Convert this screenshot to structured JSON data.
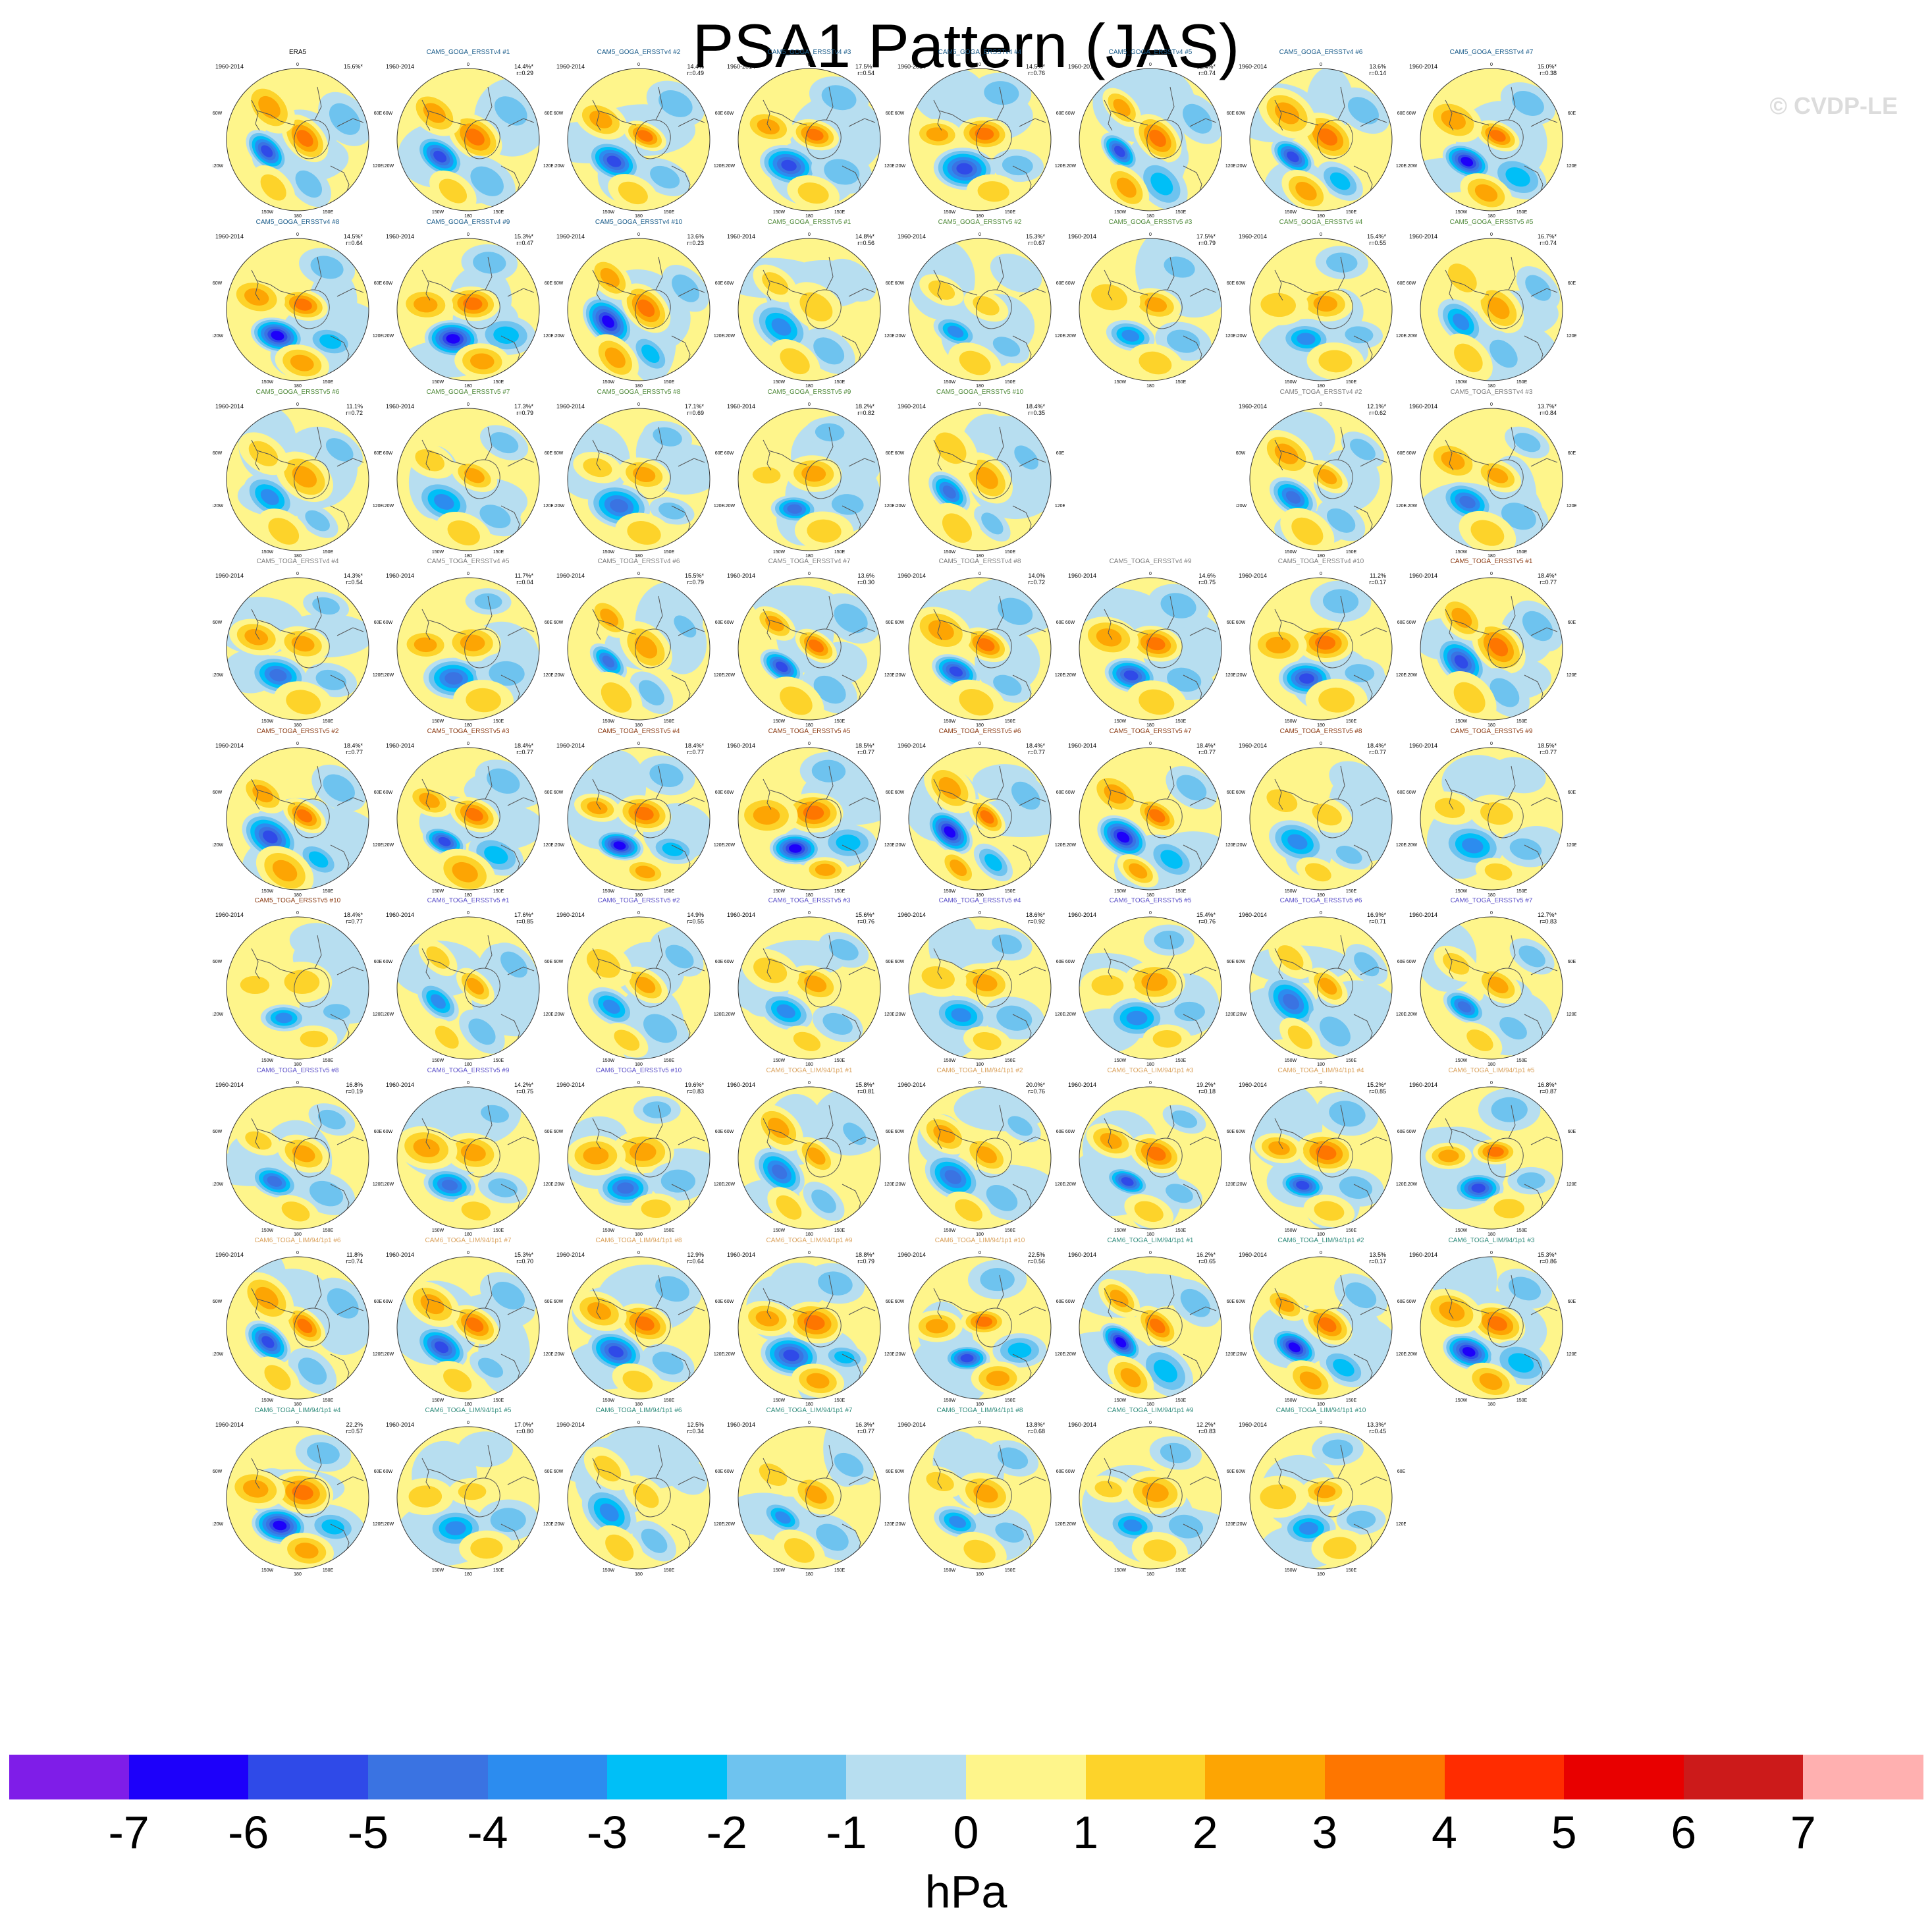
{
  "title": "PSA1 Pattern (JAS)",
  "copyright": "© CVDP-LE",
  "chart_data": {
    "type": "heatmap",
    "projection": "south-polar stereographic",
    "variable_units": "hPa",
    "colorbar": {
      "units": "hPa",
      "ticks": [
        "-7",
        "-6",
        "-5",
        "-4",
        "-3",
        "-2",
        "-1",
        "0",
        "1",
        "2",
        "3",
        "4",
        "5",
        "6",
        "7"
      ],
      "colors": [
        "#7f1de8",
        "#1d00fa",
        "#2f4ae8",
        "#3a73e2",
        "#2c8cef",
        "#00bff7",
        "#6ec3ef",
        "#b7def0",
        "#fef58b",
        "#fdd32a",
        "#fda503",
        "#fe7600",
        "#ff2c00",
        "#e80000",
        "#cc1a1a",
        "#ffb0b0"
      ]
    },
    "map_labels": {
      "years": "1960-2014",
      "lon_top": "0",
      "lon_bottom": "180",
      "lon_ul": "60W",
      "lon_ur": "60E",
      "lon_ll": "120W",
      "lon_lr": "120E",
      "lon_bl": "150W",
      "lon_br": "150E",
      "lon_tl": "30W",
      "lon_tr": "30E"
    },
    "panels": [
      {
        "name": "ERA5",
        "pct": "15.6%*",
        "r": "",
        "group": "obs"
      },
      {
        "name": "CAM5_GOGA_ERSSTv4 #1",
        "pct": "14.4%*",
        "r": "r=0.29",
        "group": "goga4"
      },
      {
        "name": "CAM5_GOGA_ERSSTv4 #2",
        "pct": "14.4%",
        "r": "r=0.49",
        "group": "goga4"
      },
      {
        "name": "CAM5_GOGA_ERSSTv4 #3",
        "pct": "17.5%*",
        "r": "r=0.54",
        "group": "goga4"
      },
      {
        "name": "CAM5_GOGA_ERSSTv4 #4",
        "pct": "14.5%*",
        "r": "r=0.76",
        "group": "goga4"
      },
      {
        "name": "CAM5_GOGA_ERSSTv4 #5",
        "pct": "12.4%*",
        "r": "r=0.74",
        "group": "goga4"
      },
      {
        "name": "CAM5_GOGA_ERSSTv4 #6",
        "pct": "13.6%",
        "r": "r=0.14",
        "group": "goga4"
      },
      {
        "name": "CAM5_GOGA_ERSSTv4 #7",
        "pct": "15.0%*",
        "r": "r=0.38",
        "group": "goga4"
      },
      {
        "name": "CAM5_GOGA_ERSSTv4 #8",
        "pct": "14.5%*",
        "r": "r=0.64",
        "group": "goga4"
      },
      {
        "name": "CAM5_GOGA_ERSSTv4 #9",
        "pct": "15.3%*",
        "r": "r=0.47",
        "group": "goga4"
      },
      {
        "name": "CAM5_GOGA_ERSSTv4 #10",
        "pct": "13.6%",
        "r": "r=0.23",
        "group": "goga4"
      },
      {
        "name": "CAM5_GOGA_ERSSTv5 #1",
        "pct": "14.8%*",
        "r": "r=0.56",
        "group": "goga5"
      },
      {
        "name": "CAM5_GOGA_ERSSTv5 #2",
        "pct": "15.3%*",
        "r": "r=0.67",
        "group": "goga5"
      },
      {
        "name": "CAM5_GOGA_ERSSTv5 #3",
        "pct": "17.5%*",
        "r": "r=0.79",
        "group": "goga5"
      },
      {
        "name": "CAM5_GOGA_ERSSTv5 #4",
        "pct": "15.4%*",
        "r": "r=0.55",
        "group": "goga5"
      },
      {
        "name": "CAM5_GOGA_ERSSTv5 #5",
        "pct": "16.7%*",
        "r": "r=0.74",
        "group": "goga5"
      },
      {
        "name": "CAM5_GOGA_ERSSTv5 #6",
        "pct": "11.1%",
        "r": "r=0.72",
        "group": "goga5"
      },
      {
        "name": "CAM5_GOGA_ERSSTv5 #7",
        "pct": "17.3%*",
        "r": "r=0.79",
        "group": "goga5"
      },
      {
        "name": "CAM5_GOGA_ERSSTv5 #8",
        "pct": "17.1%*",
        "r": "r=0.69",
        "group": "goga5"
      },
      {
        "name": "CAM5_GOGA_ERSSTv5 #9",
        "pct": "18.2%*",
        "r": "r=0.82",
        "group": "goga5"
      },
      {
        "name": "CAM5_GOGA_ERSSTv5 #10",
        "pct": "18.4%*",
        "r": "r=0.35",
        "group": "goga5"
      },
      {
        "name": "CAM5_TOGA_ERSSTv4 #2",
        "pct": "12.1%*",
        "r": "r=0.62",
        "group": "toga4"
      },
      {
        "name": "CAM5_TOGA_ERSSTv4 #3",
        "pct": "13.7%*",
        "r": "r=0.84",
        "group": "toga4"
      },
      {
        "name": "CAM5_TOGA_ERSSTv4 #4",
        "pct": "14.3%*",
        "r": "r=0.54",
        "group": "toga4"
      },
      {
        "name": "CAM5_TOGA_ERSSTv4 #5",
        "pct": "11.7%*",
        "r": "r=0.04",
        "group": "toga4"
      },
      {
        "name": "CAM5_TOGA_ERSSTv4 #6",
        "pct": "15.5%*",
        "r": "r=0.79",
        "group": "toga4"
      },
      {
        "name": "CAM5_TOGA_ERSSTv4 #7",
        "pct": "13.6%",
        "r": "r=0.30",
        "group": "toga4"
      },
      {
        "name": "CAM5_TOGA_ERSSTv4 #8",
        "pct": "14.0%",
        "r": "r=0.72",
        "group": "toga4"
      },
      {
        "name": "CAM5_TOGA_ERSSTv4 #9",
        "pct": "14.6%",
        "r": "r=0.75",
        "group": "toga4"
      },
      {
        "name": "CAM5_TOGA_ERSSTv4 #10",
        "pct": "11.2%",
        "r": "r=0.17",
        "group": "toga4"
      },
      {
        "name": "CAM5_TOGA_ERSSTv5 #1",
        "pct": "18.4%*",
        "r": "r=0.77",
        "group": "toga5"
      },
      {
        "name": "CAM5_TOGA_ERSSTv5 #2",
        "pct": "18.4%*",
        "r": "r=0.77",
        "group": "toga5"
      },
      {
        "name": "CAM5_TOGA_ERSSTv5 #3",
        "pct": "18.4%*",
        "r": "r=0.77",
        "group": "toga5"
      },
      {
        "name": "CAM5_TOGA_ERSSTv5 #4",
        "pct": "18.4%*",
        "r": "r=0.77",
        "group": "toga5"
      },
      {
        "name": "CAM5_TOGA_ERSSTv5 #5",
        "pct": "18.5%*",
        "r": "r=0.77",
        "group": "toga5"
      },
      {
        "name": "CAM5_TOGA_ERSSTv5 #6",
        "pct": "18.4%*",
        "r": "r=0.77",
        "group": "toga5"
      },
      {
        "name": "CAM5_TOGA_ERSSTv5 #7",
        "pct": "18.4%*",
        "r": "r=0.77",
        "group": "toga5"
      },
      {
        "name": "CAM5_TOGA_ERSSTv5 #8",
        "pct": "18.4%*",
        "r": "r=0.77",
        "group": "toga5"
      },
      {
        "name": "CAM5_TOGA_ERSSTv5 #9",
        "pct": "18.5%*",
        "r": "r=0.77",
        "group": "toga5"
      },
      {
        "name": "CAM5_TOGA_ERSSTv5 #10",
        "pct": "18.4%*",
        "r": "r=0.77",
        "group": "toga5"
      },
      {
        "name": "CAM6_TOGA_ERSSTv5 #1",
        "pct": "17.6%*",
        "r": "r=0.85",
        "group": "cam6e"
      },
      {
        "name": "CAM6_TOGA_ERSSTv5 #2",
        "pct": "14.9%",
        "r": "r=0.55",
        "group": "cam6e"
      },
      {
        "name": "CAM6_TOGA_ERSSTv5 #3",
        "pct": "15.6%*",
        "r": "r=0.76",
        "group": "cam6e"
      },
      {
        "name": "CAM6_TOGA_ERSSTv5 #4",
        "pct": "18.6%*",
        "r": "r=0.92",
        "group": "cam6e"
      },
      {
        "name": "CAM6_TOGA_ERSSTv5 #5",
        "pct": "15.4%*",
        "r": "r=0.76",
        "group": "cam6e"
      },
      {
        "name": "CAM6_TOGA_ERSSTv5 #6",
        "pct": "16.9%*",
        "r": "r=0.71",
        "group": "cam6e"
      },
      {
        "name": "CAM6_TOGA_ERSSTv5 #7",
        "pct": "12.7%*",
        "r": "r=0.83",
        "group": "cam6e"
      },
      {
        "name": "CAM6_TOGA_ERSSTv5 #8",
        "pct": "16.8%",
        "r": "r=0.19",
        "group": "cam6e"
      },
      {
        "name": "CAM6_TOGA_ERSSTv5 #9",
        "pct": "14.2%*",
        "r": "r=0.75",
        "group": "cam6e"
      },
      {
        "name": "CAM6_TOGA_ERSSTv5 #10",
        "pct": "19.6%*",
        "r": "r=0.83",
        "group": "cam6e"
      },
      {
        "name": "CAM6_TOGA_LIM/94/1p1 #1",
        "pct": "15.8%*",
        "r": "r=0.81",
        "group": "lim1"
      },
      {
        "name": "CAM6_TOGA_LIM/94/1p1 #2",
        "pct": "20.0%*",
        "r": "r=0.76",
        "group": "lim1"
      },
      {
        "name": "CAM6_TOGA_LIM/94/1p1 #3",
        "pct": "19.2%*",
        "r": "r=0.18",
        "group": "lim1"
      },
      {
        "name": "CAM6_TOGA_LIM/94/1p1 #4",
        "pct": "15.2%*",
        "r": "r=0.85",
        "group": "lim1"
      },
      {
        "name": "CAM6_TOGA_LIM/94/1p1 #5",
        "pct": "16.8%*",
        "r": "r=0.87",
        "group": "lim1"
      },
      {
        "name": "CAM6_TOGA_LIM/94/1p1 #6",
        "pct": "11.8%",
        "r": "r=0.74",
        "group": "lim1"
      },
      {
        "name": "CAM6_TOGA_LIM/94/1p1 #7",
        "pct": "15.3%*",
        "r": "r=0.70",
        "group": "lim1"
      },
      {
        "name": "CAM6_TOGA_LIM/94/1p1 #8",
        "pct": "12.9%",
        "r": "r=0.64",
        "group": "lim1"
      },
      {
        "name": "CAM6_TOGA_LIM/94/1p1 #9",
        "pct": "18.8%*",
        "r": "r=0.79",
        "group": "lim1"
      },
      {
        "name": "CAM6_TOGA_LIM/94/1p1 #10",
        "pct": "22.5%",
        "r": "r=0.56",
        "group": "lim1"
      },
      {
        "name": "CAM6_TOGA_LIM/94/1p1 #1",
        "pct": "16.2%*",
        "r": "r=0.65",
        "group": "lim2"
      },
      {
        "name": "CAM6_TOGA_LIM/94/1p1 #2",
        "pct": "13.5%",
        "r": "r=0.17",
        "group": "lim2"
      },
      {
        "name": "CAM6_TOGA_LIM/94/1p1 #3",
        "pct": "15.3%*",
        "r": "r=0.86",
        "group": "lim2"
      },
      {
        "name": "CAM6_TOGA_LIM/94/1p1 #4",
        "pct": "22.2%",
        "r": "r=0.57",
        "group": "lim2"
      },
      {
        "name": "CAM6_TOGA_LIM/94/1p1 #5",
        "pct": "17.0%*",
        "r": "r=0.80",
        "group": "lim2"
      },
      {
        "name": "CAM6_TOGA_LIM/94/1p1 #6",
        "pct": "12.5%",
        "r": "r=0.34",
        "group": "lim2"
      },
      {
        "name": "CAM6_TOGA_LIM/94/1p1 #7",
        "pct": "16.3%*",
        "r": "r=0.77",
        "group": "lim2"
      },
      {
        "name": "CAM6_TOGA_LIM/94/1p1 #8",
        "pct": "13.8%*",
        "r": "r=0.68",
        "group": "lim2"
      },
      {
        "name": "CAM6_TOGA_LIM/94/1p1 #9",
        "pct": "12.2%*",
        "r": "r=0.83",
        "group": "lim2"
      },
      {
        "name": "CAM6_TOGA_LIM/94/1p1 #10",
        "pct": "13.3%*",
        "r": "r=0.45",
        "group": "lim2"
      }
    ],
    "group_title_colors": {
      "obs": "#000000",
      "goga4": "#1a5c8a",
      "goga5": "#4f8a3a",
      "toga4": "#7d7d7d",
      "toga5": "#8a3a12",
      "cam6e": "#5a4fc8",
      "lim1": "#d9a05a",
      "lim2": "#2e8a7a"
    }
  }
}
